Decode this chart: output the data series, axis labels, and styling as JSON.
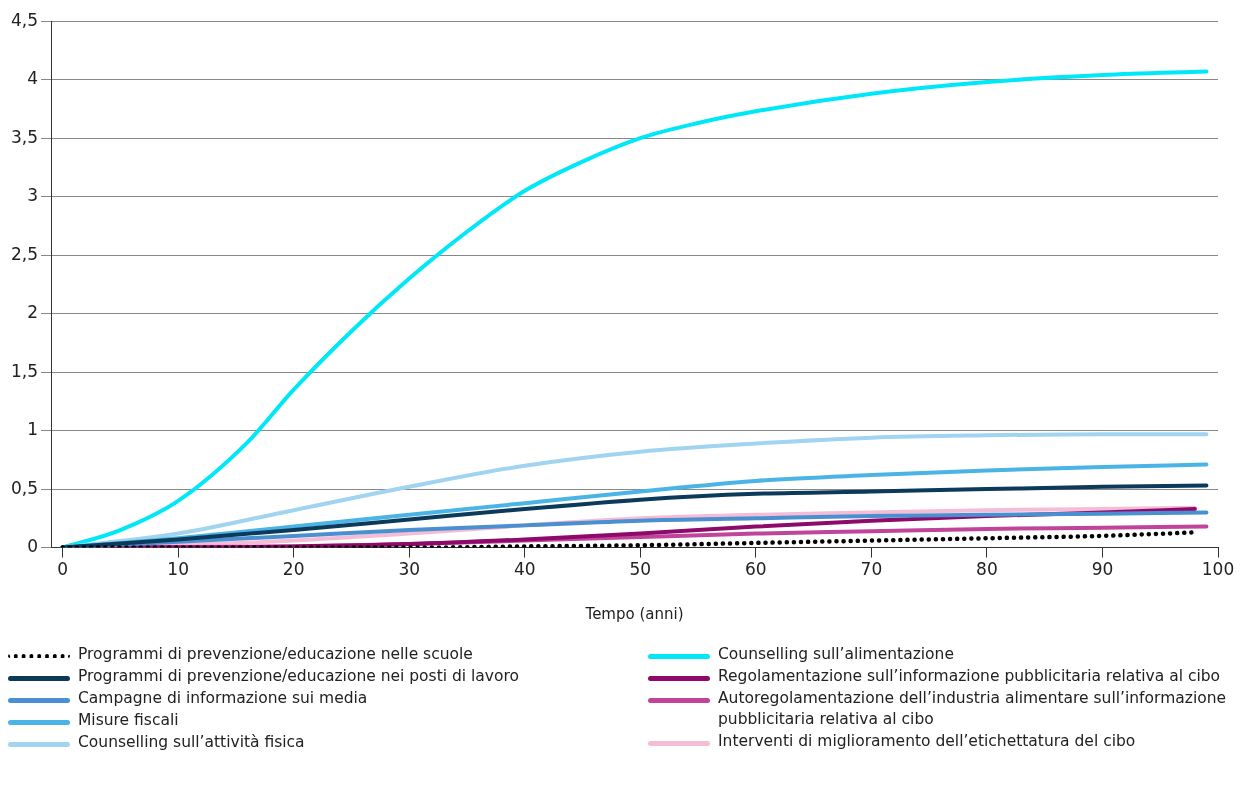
{
  "chart_data": {
    "type": "line",
    "xlabel": "Tempo (anni)",
    "xlim": [
      -1,
      100
    ],
    "xticks": [
      0,
      10,
      20,
      30,
      40,
      50,
      60,
      70,
      80,
      90,
      100
    ],
    "ylim": [
      0,
      4.5
    ],
    "yticks": [
      0,
      {
        "value": 0.5,
        "label": "0,5"
      },
      1,
      {
        "value": 1.5,
        "label": "1,5"
      },
      2,
      {
        "value": 2.5,
        "label": "2,5"
      },
      3,
      {
        "value": 3.5,
        "label": "3,5"
      },
      4,
      {
        "value": 4.5,
        "label": "4,5"
      }
    ],
    "grid": "y",
    "legend": "bottom",
    "marker": "none",
    "line_style": "solid",
    "series": [
      {
        "name": "Programmi di prevenzione/educazione nelle scuole",
        "color": "#000000",
        "line_style": "dotted",
        "x": [
          0,
          30,
          40,
          50,
          60,
          70,
          80,
          90,
          98
        ],
        "values": [
          0,
          0,
          0.01,
          0.02,
          0.04,
          0.06,
          0.08,
          0.1,
          0.13
        ]
      },
      {
        "name": "Programmi di prevenzione/educazione nei posti di lavoro",
        "color": "#0b3a5a",
        "x": [
          0,
          10,
          20,
          30,
          40,
          50,
          55,
          60,
          70,
          80,
          90,
          99
        ],
        "values": [
          0,
          0.07,
          0.15,
          0.24,
          0.33,
          0.41,
          0.44,
          0.46,
          0.48,
          0.5,
          0.52,
          0.53
        ]
      },
      {
        "name": "Campagne di informazione sui media",
        "color": "#4a8fd0",
        "x": [
          0,
          10,
          20,
          30,
          40,
          50,
          60,
          70,
          80,
          90,
          99
        ],
        "values": [
          0,
          0.05,
          0.1,
          0.15,
          0.19,
          0.23,
          0.25,
          0.27,
          0.28,
          0.29,
          0.3
        ]
      },
      {
        "name": "Misure fiscali",
        "color": "#4ab4e6",
        "x": [
          0,
          10,
          20,
          30,
          40,
          50,
          60,
          70,
          80,
          90,
          99
        ],
        "values": [
          0,
          0.08,
          0.18,
          0.28,
          0.38,
          0.48,
          0.57,
          0.62,
          0.66,
          0.69,
          0.71
        ]
      },
      {
        "name": "Counselling sull’attività fisica",
        "color": "#a0d4f0",
        "x": [
          0,
          10,
          20,
          30,
          40,
          50,
          60,
          70,
          80,
          90,
          99
        ],
        "values": [
          0,
          0.12,
          0.32,
          0.52,
          0.7,
          0.82,
          0.89,
          0.94,
          0.96,
          0.97,
          0.97
        ]
      },
      {
        "name": "Counselling sull’alimentazione",
        "color": "#00e8f8",
        "x": [
          0,
          5,
          10,
          16,
          20,
          25,
          30,
          35,
          40,
          45,
          50,
          55,
          60,
          70,
          80,
          90,
          99
        ],
        "values": [
          0,
          0.15,
          0.4,
          0.9,
          1.35,
          1.85,
          2.3,
          2.7,
          3.05,
          3.3,
          3.5,
          3.63,
          3.73,
          3.88,
          3.98,
          4.04,
          4.07
        ]
      },
      {
        "name": "Regolamentazione sull’informazione pubblicitaria relativa al cibo",
        "color": "#8e0a6a",
        "x": [
          0,
          10,
          20,
          30,
          40,
          50,
          60,
          70,
          80,
          90,
          98
        ],
        "values": [
          0,
          0,
          0.01,
          0.03,
          0.07,
          0.12,
          0.18,
          0.23,
          0.27,
          0.3,
          0.33
        ]
      },
      {
        "name": "Autoregolamentazione dell’industria alimentare sull’informazione pubblicitaria relativa al cibo",
        "color": "#c0449a",
        "x": [
          0,
          20,
          30,
          40,
          50,
          60,
          70,
          80,
          90,
          99
        ],
        "values": [
          0,
          0.01,
          0.03,
          0.06,
          0.09,
          0.12,
          0.14,
          0.16,
          0.17,
          0.18
        ]
      },
      {
        "name": "Interventi di miglioramento dell’etichettatura del cibo",
        "color": "#f5bcd6",
        "x": [
          0,
          10,
          20,
          30,
          40,
          50,
          60,
          70,
          80,
          90,
          98
        ],
        "values": [
          0,
          0.02,
          0.06,
          0.12,
          0.19,
          0.25,
          0.28,
          0.3,
          0.32,
          0.33,
          0.34
        ]
      }
    ]
  }
}
